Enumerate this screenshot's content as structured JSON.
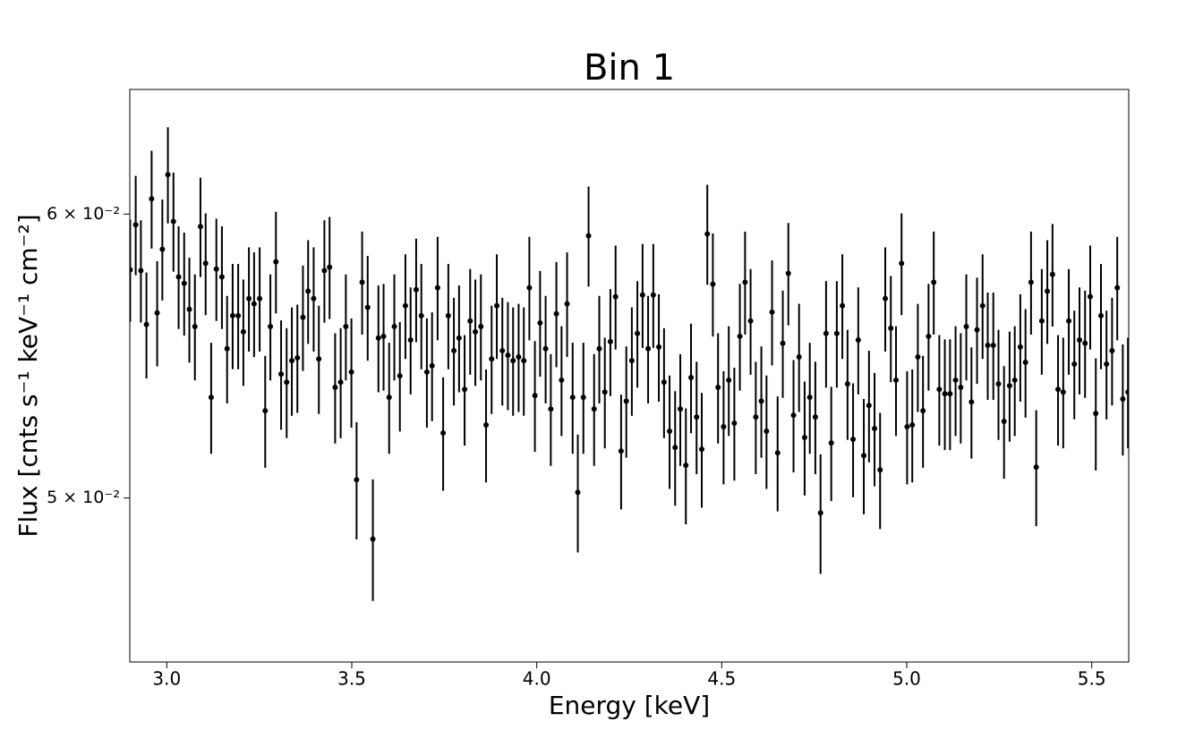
{
  "chart_data": {
    "type": "errorbar",
    "title": "Bin 1",
    "x_label": "Energy [keV]",
    "y_label": "Flux [cnts s⁻¹ keV⁻¹ cm⁻²]",
    "yscale": "log",
    "grid": false,
    "xlim": [
      2.9,
      5.6
    ],
    "ylim": [
      0.045,
      0.065
    ],
    "xticks": [
      {
        "value": 3,
        "label": "3.0"
      },
      3.5,
      {
        "value": 4,
        "label": "4.0"
      },
      4.5,
      {
        "value": 5,
        "label": "5.0"
      },
      5.5
    ],
    "yticks": [
      {
        "value": 0.05,
        "label": "5 × 10⁻²"
      },
      {
        "value": 0.06,
        "label": "6 × 10⁻²"
      }
    ],
    "series": [
      {
        "color": "#000000",
        "error": 0.0019,
        "x": [
          2.901,
          2.916,
          2.93,
          2.945,
          2.959,
          2.974,
          2.988,
          3.003,
          3.018,
          3.032,
          3.047,
          3.061,
          3.076,
          3.091,
          3.105,
          3.12,
          3.134,
          3.149,
          3.163,
          3.178,
          3.193,
          3.207,
          3.222,
          3.236,
          3.251,
          3.266,
          3.28,
          3.295,
          3.309,
          3.324,
          3.338,
          3.353,
          3.368,
          3.382,
          3.397,
          3.411,
          3.426,
          3.44,
          3.455,
          3.47,
          3.484,
          3.499,
          3.513,
          3.528,
          3.543,
          3.557,
          3.572,
          3.586,
          3.601,
          3.615,
          3.63,
          3.645,
          3.659,
          3.674,
          3.688,
          3.703,
          3.717,
          3.732,
          3.747,
          3.761,
          3.776,
          3.79,
          3.805,
          3.82,
          3.834,
          3.849,
          3.863,
          3.878,
          3.892,
          3.907,
          3.922,
          3.936,
          3.951,
          3.965,
          3.98,
          3.995,
          4.009,
          4.024,
          4.038,
          4.053,
          4.067,
          4.082,
          4.097,
          4.111,
          4.126,
          4.14,
          4.155,
          4.169,
          4.184,
          4.199,
          4.213,
          4.228,
          4.242,
          4.257,
          4.272,
          4.286,
          4.301,
          4.315,
          4.33,
          4.344,
          4.359,
          4.374,
          4.388,
          4.403,
          4.417,
          4.432,
          4.446,
          4.461,
          4.476,
          4.49,
          4.505,
          4.519,
          4.534,
          4.549,
          4.563,
          4.578,
          4.592,
          4.607,
          4.621,
          4.636,
          4.651,
          4.665,
          4.68,
          4.694,
          4.709,
          4.724,
          4.738,
          4.753,
          4.767,
          4.782,
          4.796,
          4.811,
          4.826,
          4.84,
          4.855,
          4.869,
          4.884,
          4.898,
          4.913,
          4.928,
          4.942,
          4.957,
          4.971,
          4.986,
          5.001,
          5.015,
          5.03,
          5.044,
          5.059,
          5.073,
          5.088,
          5.103,
          5.117,
          5.132,
          5.146,
          5.161,
          5.175,
          5.19,
          5.205,
          5.219,
          5.234,
          5.248,
          5.263,
          5.278,
          5.292,
          5.307,
          5.321,
          5.336,
          5.35,
          5.365,
          5.38,
          5.394,
          5.409,
          5.423,
          5.438,
          5.453,
          5.467,
          5.482,
          5.496,
          5.511,
          5.525,
          5.54,
          5.555,
          5.569,
          5.584,
          5.598
        ],
        "values": [
          0.05789,
          0.05959,
          0.05786,
          0.05589,
          0.06059,
          0.05631,
          0.05866,
          0.06154,
          0.05972,
          0.05763,
          0.05739,
          0.05644,
          0.05582,
          0.05952,
          0.05813,
          0.05334,
          0.05792,
          0.05763,
          0.05503,
          0.05621,
          0.05621,
          0.05563,
          0.05683,
          0.05664,
          0.05683,
          0.05288,
          0.05582,
          0.05819,
          0.05414,
          0.05386,
          0.05461,
          0.05471,
          0.05615,
          0.0571,
          0.05683,
          0.05467,
          0.05786,
          0.05799,
          0.05368,
          0.05386,
          0.05582,
          0.05421,
          0.05059,
          0.05743,
          0.05651,
          0.0487,
          0.05541,
          0.05547,
          0.05334,
          0.05582,
          0.05408,
          0.05657,
          0.05534,
          0.05716,
          0.05621,
          0.05421,
          0.05443,
          0.05723,
          0.05213,
          0.05621,
          0.05496,
          0.05541,
          0.05361,
          0.05602,
          0.05563,
          0.05582,
          0.0524,
          0.05467,
          0.05657,
          0.05496,
          0.0548,
          0.05461,
          0.05474,
          0.05461,
          0.05723,
          0.0534,
          0.05595,
          0.05503,
          0.05294,
          0.05628,
          0.05393,
          0.05664,
          0.05334,
          0.05018,
          0.05334,
          0.05917,
          0.05294,
          0.05503,
          0.05352,
          0.05528,
          0.0569,
          0.05153,
          0.05321,
          0.05461,
          0.05557,
          0.05696,
          0.05503,
          0.05696,
          0.05509,
          0.05386,
          0.05219,
          0.05165,
          0.05294,
          0.05106,
          0.05402,
          0.05267,
          0.05159,
          0.05924,
          0.05736,
          0.05368,
          0.05234,
          0.05393,
          0.05246,
          0.05547,
          0.05743,
          0.05602,
          0.05267,
          0.05321,
          0.05219,
          0.05634,
          0.05147,
          0.05522,
          0.05776,
          0.05273,
          0.05474,
          0.05198,
          0.05334,
          0.05267,
          0.04952,
          0.05557,
          0.0518,
          0.05557,
          0.05657,
          0.0538,
          0.05192,
          0.05534,
          0.05138,
          0.05306,
          0.05228,
          0.05091,
          0.05683,
          0.05576,
          0.05393,
          0.05813,
          0.05234,
          0.0524,
          0.05474,
          0.05288,
          0.05547,
          0.05743,
          0.05361,
          0.05346,
          0.05346,
          0.05393,
          0.05368,
          0.05582,
          0.05318,
          0.0557,
          0.05657,
          0.05515,
          0.05515,
          0.0538,
          0.05252,
          0.05374,
          0.05393,
          0.05509,
          0.05455,
          0.05743,
          0.051,
          0.05602,
          0.0571,
          0.05772,
          0.05361,
          0.05352,
          0.05602,
          0.05449,
          0.05534,
          0.05522,
          0.0569,
          0.05279,
          0.05621,
          0.05449,
          0.05496,
          0.05723,
          0.05328,
          0.05352
        ]
      }
    ]
  }
}
